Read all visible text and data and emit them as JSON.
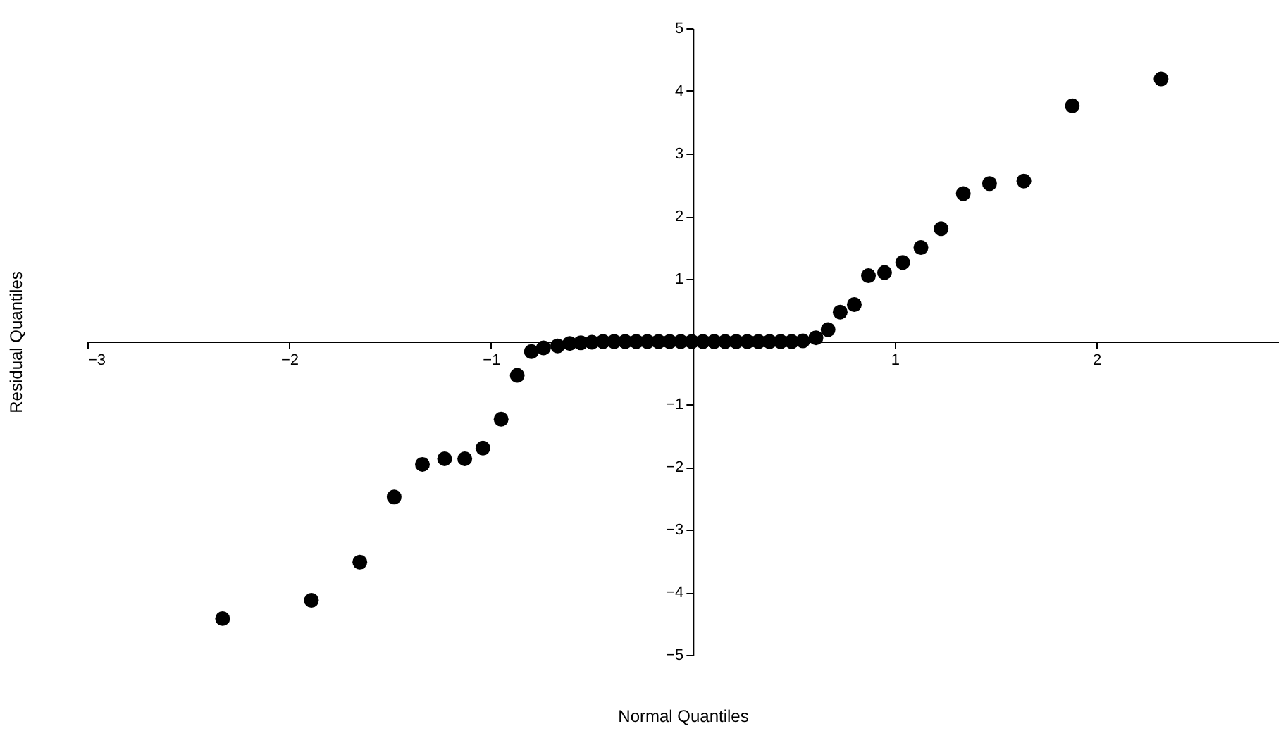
{
  "chart_data": {
    "type": "scatter",
    "xlabel": "Normal Quantiles",
    "ylabel": "Residual Quantiles",
    "xlim": [
      -3,
      2.9
    ],
    "ylim": [
      -5,
      5
    ],
    "xticks": [
      -3,
      -2,
      -1,
      1,
      2
    ],
    "yticks": [
      -5,
      -4,
      -3,
      -2,
      -1,
      1,
      2,
      3,
      4,
      5
    ],
    "grid": false,
    "marker": "circle",
    "series": [
      {
        "color": "#000000",
        "x": [
          -2.33,
          -1.89,
          -1.65,
          -1.48,
          -1.34,
          -1.23,
          -1.13,
          -1.04,
          -0.95,
          -0.87,
          -0.8,
          -0.74,
          -0.67,
          -0.61,
          -0.555,
          -0.5,
          -0.445,
          -0.39,
          -0.335,
          -0.28,
          -0.225,
          -0.17,
          -0.115,
          -0.06,
          -0.005,
          0.05,
          0.105,
          0.16,
          0.215,
          0.27,
          0.325,
          0.38,
          0.435,
          0.49,
          0.545,
          0.61,
          0.67,
          0.73,
          0.8,
          0.87,
          0.95,
          1.04,
          1.13,
          1.23,
          1.34,
          1.47,
          1.64,
          1.88,
          2.32
        ],
        "values": [
          -4.42,
          -4.13,
          -3.52,
          -2.48,
          -1.96,
          -1.87,
          -1.87,
          -1.7,
          -1.24,
          -0.54,
          -0.16,
          -0.1,
          -0.07,
          -0.03,
          -0.02,
          -0.01,
          0,
          0,
          0,
          0,
          0,
          0,
          0,
          0,
          0,
          0,
          0,
          0,
          0,
          0,
          0,
          0,
          0,
          0,
          0.01,
          0.06,
          0.19,
          0.47,
          0.59,
          1.05,
          1.1,
          1.26,
          1.5,
          1.8,
          2.36,
          2.52,
          2.56,
          3.76,
          4.19
        ]
      }
    ]
  }
}
